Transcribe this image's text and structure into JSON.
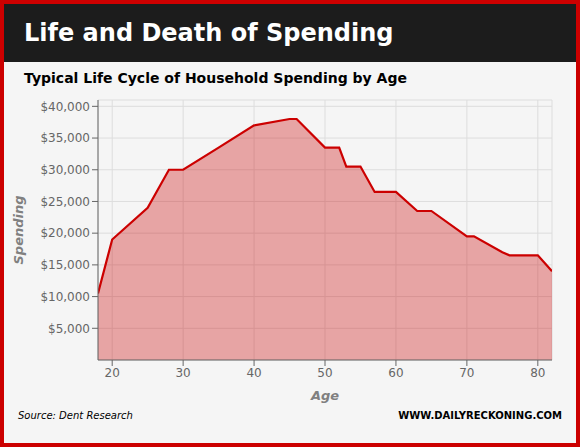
{
  "chart_data": {
    "type": "area",
    "title": "Life and Death of Spending",
    "subtitle": "Typical Life Cycle of Household Spending by Age",
    "annotations": [
      "Source: Dent Research",
      "WWW.DAILYRECKONING.COM"
    ],
    "x_label": "Age",
    "y_label": "Spending",
    "x": [
      18,
      20,
      25,
      28,
      30,
      35,
      40,
      45,
      46,
      50,
      52,
      53,
      55,
      57,
      60,
      63,
      65,
      70,
      71,
      75,
      76,
      80,
      82
    ],
    "values": [
      10500,
      19000,
      24000,
      30000,
      30000,
      33500,
      37000,
      38000,
      38000,
      33500,
      33500,
      30500,
      30500,
      26500,
      26500,
      23500,
      23500,
      19500,
      19500,
      17000,
      16500,
      16500,
      14000
    ],
    "color": "#CC0000",
    "xlim": [
      18,
      82
    ],
    "ylim": [
      0,
      41000
    ],
    "xticks": [
      20,
      30,
      40,
      50,
      60,
      70,
      80
    ],
    "yticks": [
      {
        "value": 5000,
        "label": "$5,000"
      },
      {
        "value": 10000,
        "label": "$10,000"
      },
      {
        "value": 15000,
        "label": "$15,000"
      },
      {
        "value": 20000,
        "label": "$20,000"
      },
      {
        "value": 25000,
        "label": "$25,000"
      },
      {
        "value": 30000,
        "label": "$30,000"
      },
      {
        "value": 35000,
        "label": "$35,000"
      },
      {
        "value": 40000,
        "label": "$40,000"
      }
    ],
    "grid": true
  }
}
